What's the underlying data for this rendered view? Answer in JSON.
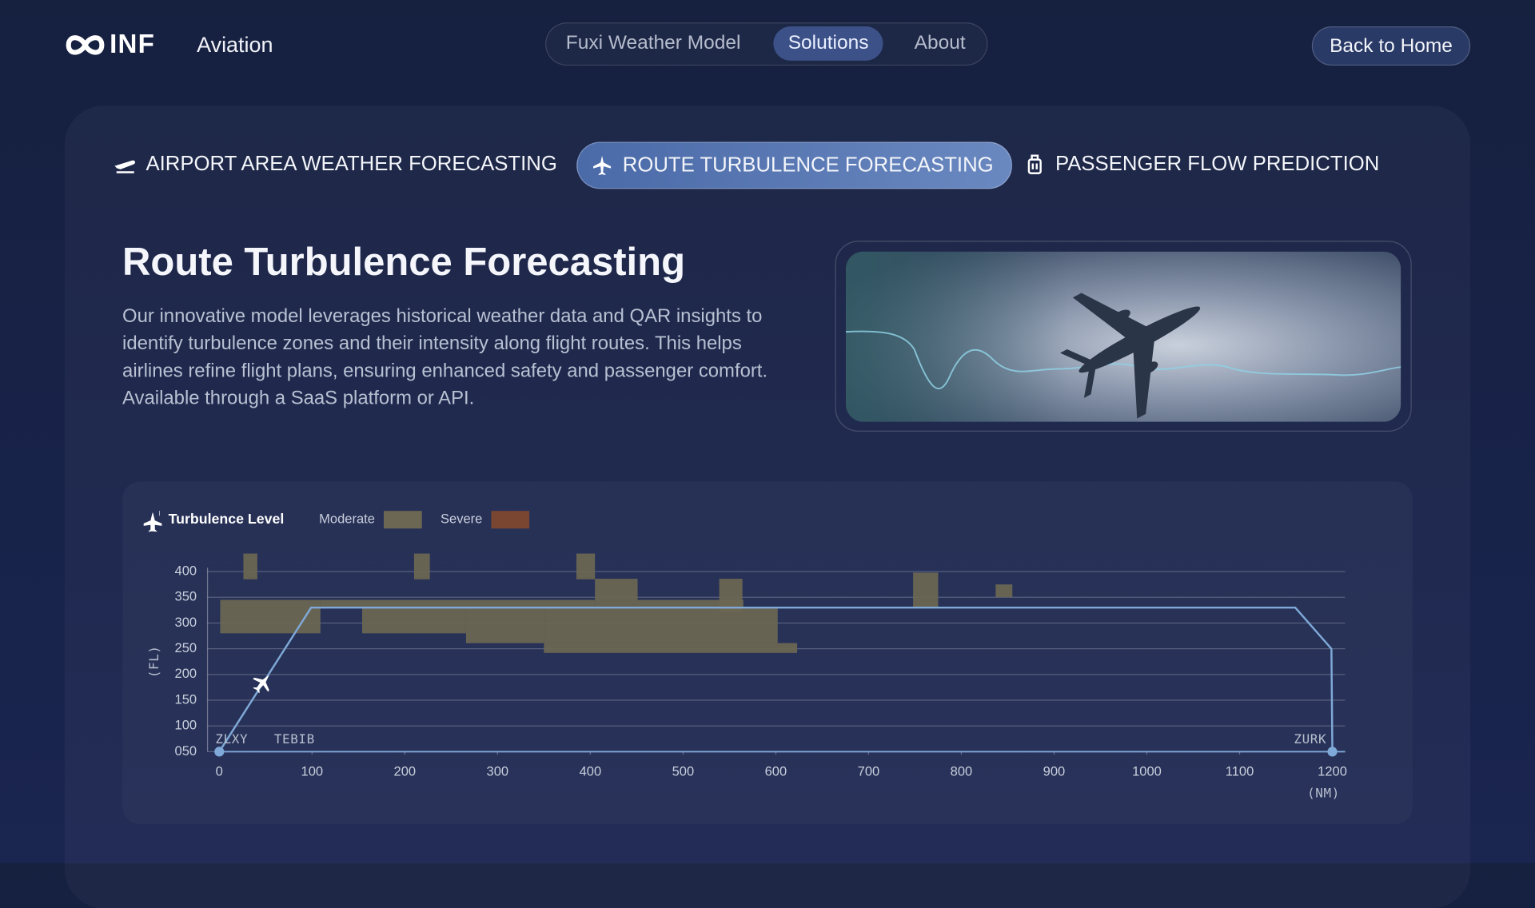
{
  "header": {
    "logo": "INF",
    "brand": "Aviation",
    "nav": [
      "Fuxi Weather Model",
      "Solutions",
      "About"
    ],
    "back": "Back to Home"
  },
  "tabs": [
    "AIRPORT AREA WEATHER FORECASTING",
    "ROUTE TURBULENCE FORECASTING",
    "PASSENGER FLOW PREDICTION"
  ],
  "section": {
    "title": "Route Turbulence Forecasting",
    "body": "Our innovative model leverages historical weather data and QAR insights to identify turbulence zones and their intensity along flight routes. This helps airlines refine flight plans, ensuring enhanced safety and passenger comfort. Available through a SaaS platform or API."
  },
  "chart_data": {
    "type": "profile",
    "legend_title": "Turbulence Level",
    "xlabel": "(NM)",
    "ylabel": "(FL)",
    "xlim": [
      0,
      1200
    ],
    "xticks": [
      0,
      100,
      200,
      300,
      400,
      500,
      600,
      700,
      800,
      900,
      1000,
      1100,
      1200
    ],
    "ylim": [
      50,
      400
    ],
    "yticks": [
      {
        "value": 50,
        "label": "050"
      },
      100,
      150,
      200,
      250,
      300,
      350,
      400
    ],
    "grid": true,
    "series": [
      {
        "name": "Moderate",
        "color": "#6b6753",
        "boxes": [
          {
            "x": [
              26,
              41
            ],
            "fl": [
              385,
              435
            ]
          },
          {
            "x": [
              210,
              227
            ],
            "fl": [
              385,
              435
            ]
          },
          {
            "x": [
              385,
              405
            ],
            "fl": [
              385,
              435
            ]
          },
          {
            "x": [
              1,
              109
            ],
            "fl": [
              280,
              345
            ]
          },
          {
            "x": [
              109,
              405
            ],
            "fl": [
              330,
              345
            ]
          },
          {
            "x": [
              154,
              266
            ],
            "fl": [
              280,
              330
            ]
          },
          {
            "x": [
              266,
              350
            ],
            "fl": [
              261,
              330
            ]
          },
          {
            "x": [
              350,
              602
            ],
            "fl": [
              261,
              330
            ]
          },
          {
            "x": [
              350,
              623
            ],
            "fl": [
              242,
              261
            ]
          },
          {
            "x": [
              405,
              451
            ],
            "fl": [
              345,
              386
            ]
          },
          {
            "x": [
              405,
              565
            ],
            "fl": [
              330,
              345
            ]
          },
          {
            "x": [
              539,
              564
            ],
            "fl": [
              322,
              386
            ]
          },
          {
            "x": [
              748,
              775
            ],
            "fl": [
              330,
              398
            ]
          },
          {
            "x": [
              837,
              855
            ],
            "fl": [
              350,
              375
            ]
          }
        ]
      },
      {
        "name": "Severe",
        "color": "#7a4631",
        "boxes": []
      }
    ],
    "route": {
      "color": "#7fa9d8",
      "x": [
        0,
        99,
        1160,
        1199,
        1200
      ],
      "values": [
        50,
        330,
        330,
        250,
        50
      ]
    },
    "waypoints": [
      "ZLXY",
      "TEBIB",
      "ZURK"
    ]
  }
}
